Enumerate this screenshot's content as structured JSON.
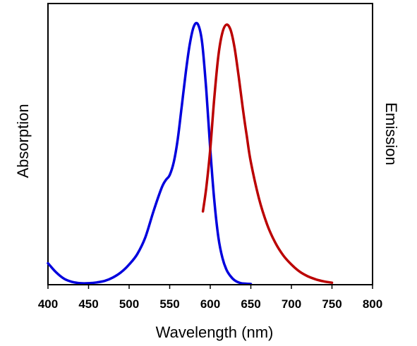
{
  "chart_data": {
    "type": "line",
    "xlabel": "Wavelength (nm)",
    "ylabel_left": "Absorption",
    "ylabel_right": "Emission",
    "xlim": [
      400,
      800
    ],
    "ylim": [
      0,
      1
    ],
    "x_ticks": [
      400,
      450,
      500,
      550,
      600,
      650,
      700,
      750,
      800
    ],
    "grid": false,
    "legend": "none",
    "series": [
      {
        "axis": "left",
        "color": "#0000dd",
        "x": [
          400,
          410,
          420,
          430,
          440,
          450,
          460,
          470,
          480,
          490,
          500,
          510,
          520,
          530,
          540,
          545,
          550,
          555,
          560,
          565,
          570,
          575,
          580,
          585,
          590,
          595,
          600,
          605,
          610,
          615,
          620,
          625,
          630,
          635,
          640,
          650
        ],
        "y": [
          0.08,
          0.045,
          0.02,
          0.008,
          0.003,
          0.003,
          0.006,
          0.012,
          0.025,
          0.045,
          0.075,
          0.115,
          0.18,
          0.28,
          0.37,
          0.4,
          0.42,
          0.47,
          0.56,
          0.69,
          0.82,
          0.93,
          0.995,
          1.0,
          0.93,
          0.75,
          0.52,
          0.32,
          0.18,
          0.1,
          0.055,
          0.03,
          0.014,
          0.006,
          0.002,
          0.0
        ]
      },
      {
        "axis": "right",
        "color": "#bb0000",
        "x": [
          591,
          595,
          600,
          605,
          610,
          615,
          620,
          625,
          630,
          635,
          640,
          645,
          650,
          660,
          670,
          680,
          690,
          700,
          710,
          720,
          730,
          740,
          750
        ],
        "y": [
          0.28,
          0.37,
          0.52,
          0.72,
          0.88,
          0.97,
          1.0,
          0.98,
          0.91,
          0.8,
          0.68,
          0.57,
          0.47,
          0.33,
          0.23,
          0.16,
          0.11,
          0.075,
          0.048,
          0.03,
          0.018,
          0.01,
          0.005
        ]
      }
    ]
  }
}
